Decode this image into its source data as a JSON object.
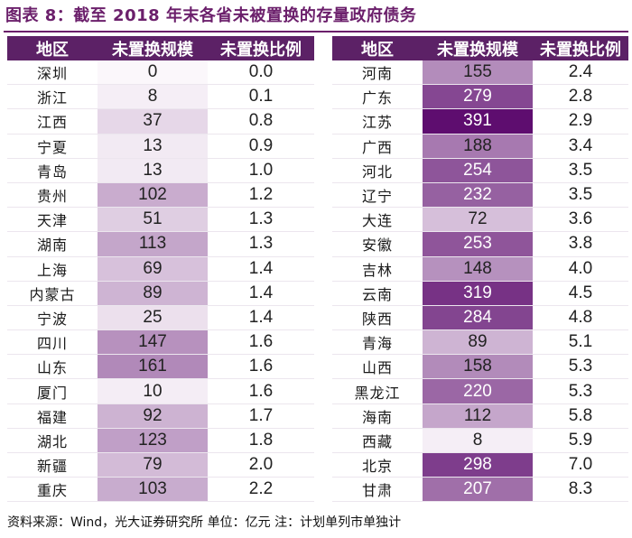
{
  "title": "图表 8：截至 2018 年末各省未被置换的存量政府债务",
  "headers": {
    "region": "地区",
    "amount": "未置换规模",
    "ratio": "未置换比例"
  },
  "left_rows": [
    {
      "region": "深圳",
      "amount": "0",
      "ratio": "0.0"
    },
    {
      "region": "浙江",
      "amount": "8",
      "ratio": "0.1"
    },
    {
      "region": "江西",
      "amount": "37",
      "ratio": "0.8"
    },
    {
      "region": "宁夏",
      "amount": "13",
      "ratio": "0.9"
    },
    {
      "region": "青岛",
      "amount": "13",
      "ratio": "1.0"
    },
    {
      "region": "贵州",
      "amount": "102",
      "ratio": "1.2"
    },
    {
      "region": "天津",
      "amount": "51",
      "ratio": "1.3"
    },
    {
      "region": "湖南",
      "amount": "113",
      "ratio": "1.3"
    },
    {
      "region": "上海",
      "amount": "69",
      "ratio": "1.4"
    },
    {
      "region": "内蒙古",
      "amount": "89",
      "ratio": "1.4"
    },
    {
      "region": "宁波",
      "amount": "25",
      "ratio": "1.4"
    },
    {
      "region": "四川",
      "amount": "147",
      "ratio": "1.6"
    },
    {
      "region": "山东",
      "amount": "161",
      "ratio": "1.6"
    },
    {
      "region": "厦门",
      "amount": "10",
      "ratio": "1.6"
    },
    {
      "region": "福建",
      "amount": "92",
      "ratio": "1.7"
    },
    {
      "region": "湖北",
      "amount": "123",
      "ratio": "1.8"
    },
    {
      "region": "新疆",
      "amount": "79",
      "ratio": "2.0"
    },
    {
      "region": "重庆",
      "amount": "103",
      "ratio": "2.2"
    }
  ],
  "right_rows": [
    {
      "region": "河南",
      "amount": "155",
      "ratio": "2.4"
    },
    {
      "region": "广东",
      "amount": "279",
      "ratio": "2.8"
    },
    {
      "region": "江苏",
      "amount": "391",
      "ratio": "2.9"
    },
    {
      "region": "广西",
      "amount": "188",
      "ratio": "3.4"
    },
    {
      "region": "河北",
      "amount": "254",
      "ratio": "3.5"
    },
    {
      "region": "辽宁",
      "amount": "232",
      "ratio": "3.5"
    },
    {
      "region": "大连",
      "amount": "72",
      "ratio": "3.6"
    },
    {
      "region": "安徽",
      "amount": "253",
      "ratio": "3.8"
    },
    {
      "region": "吉林",
      "amount": "148",
      "ratio": "4.0"
    },
    {
      "region": "云南",
      "amount": "319",
      "ratio": "4.5"
    },
    {
      "region": "陕西",
      "amount": "284",
      "ratio": "4.8"
    },
    {
      "region": "青海",
      "amount": "89",
      "ratio": "5.1"
    },
    {
      "region": "山西",
      "amount": "158",
      "ratio": "5.3"
    },
    {
      "region": "黑龙江",
      "amount": "220",
      "ratio": "5.3"
    },
    {
      "region": "海南",
      "amount": "112",
      "ratio": "5.8"
    },
    {
      "region": "西藏",
      "amount": "8",
      "ratio": "5.9"
    },
    {
      "region": "北京",
      "amount": "298",
      "ratio": "7.0"
    },
    {
      "region": "甘肃",
      "amount": "207",
      "ratio": "8.3"
    }
  ],
  "colors": {
    "header_bg": "#5c2166",
    "heat_low": "#fbf7fb",
    "heat_high": "#5e0d6f",
    "title": "#6b1f6b"
  },
  "footer": "资料来源：Wind，光大证券研究所    单位：亿元  注：计划单列市单独计"
}
